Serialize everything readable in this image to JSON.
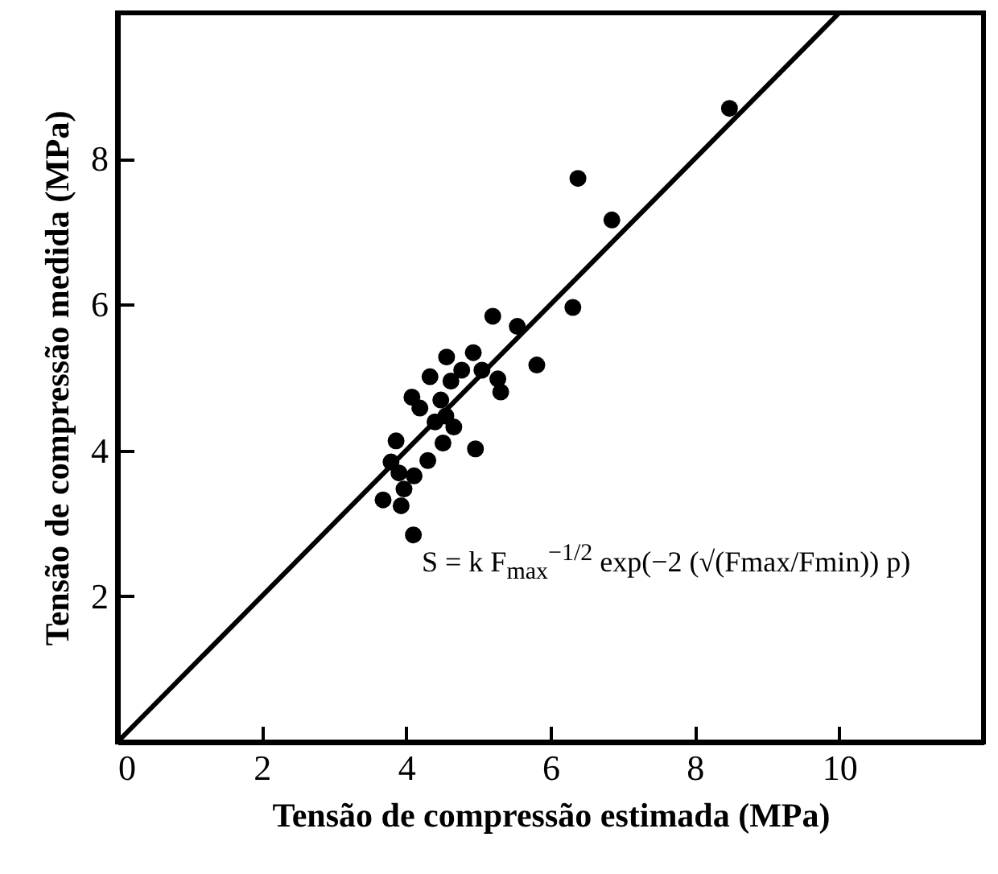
{
  "chart_data": {
    "type": "scatter",
    "xlabel": "Tensão de compressão estimada (MPa)",
    "ylabel": "Tensão de compressão medida (MPa)",
    "annotations": [
      "S = k F$_{max}$$^{−1/2}$ exp(−2 (√(Fmax/Fmin)) p)"
    ],
    "xlim": [
      0,
      12
    ],
    "ylim": [
      0,
      10
    ],
    "xticks": [
      0,
      2,
      4,
      6,
      8,
      10
    ],
    "yticks": [
      2,
      4,
      6,
      8
    ],
    "grid": false,
    "series": [
      {
        "marker": "circle",
        "color": "#000000",
        "x": [
          8.48,
          6.38,
          6.85,
          6.31,
          5.2,
          5.54,
          5.81,
          4.56,
          4.93,
          4.33,
          4.77,
          4.62,
          5.05,
          5.27,
          5.31,
          4.08,
          4.19,
          4.48,
          4.4,
          4.66,
          4.55,
          3.86,
          4.51,
          4.96,
          4.3,
          3.79,
          3.9,
          4.11,
          3.97,
          3.68,
          3.93,
          4.1
        ],
        "values": [
          8.69,
          7.73,
          7.16,
          5.96,
          5.84,
          5.7,
          5.17,
          5.28,
          5.34,
          5.01,
          5.1,
          4.95,
          5.1,
          4.98,
          4.8,
          4.73,
          4.58,
          4.69,
          4.39,
          4.32,
          4.47,
          4.13,
          4.1,
          4.02,
          3.86,
          3.84,
          3.69,
          3.65,
          3.47,
          3.32,
          3.24,
          2.84
        ]
      },
      {
        "type": "line",
        "color": "#000000",
        "x": [
          0,
          10
        ],
        "values": [
          0,
          10
        ]
      }
    ]
  }
}
